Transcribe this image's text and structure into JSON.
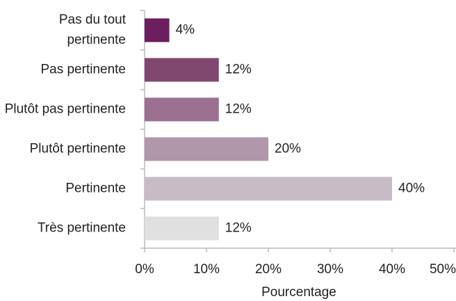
{
  "chart_data": {
    "type": "bar",
    "orientation": "horizontal",
    "xlabel": "Pourcentage",
    "categories": [
      "Pas du tout pertinente",
      "Pas pertinente",
      "Plutôt pas pertinente",
      "Plutôt pertinente",
      "Pertinente",
      "Très pertinente"
    ],
    "values": [
      4,
      12,
      12,
      20,
      40,
      12
    ],
    "value_labels": [
      "4%",
      "12%",
      "12%",
      "20%",
      "40%",
      "12%"
    ],
    "colors": [
      "#6b1f5f",
      "#80476f",
      "#9b7090",
      "#b097aa",
      "#c9bbc6",
      "#e0e0e0"
    ],
    "xlim": [
      0,
      50
    ],
    "xticks": [
      {
        "value": 0,
        "label": "0%"
      },
      {
        "value": 10,
        "label": "10%"
      },
      {
        "value": 20,
        "label": "20%"
      },
      {
        "value": 30,
        "label": "30%"
      },
      {
        "value": 40,
        "label": "40%"
      },
      {
        "value": 50,
        "label": "50%"
      }
    ]
  }
}
